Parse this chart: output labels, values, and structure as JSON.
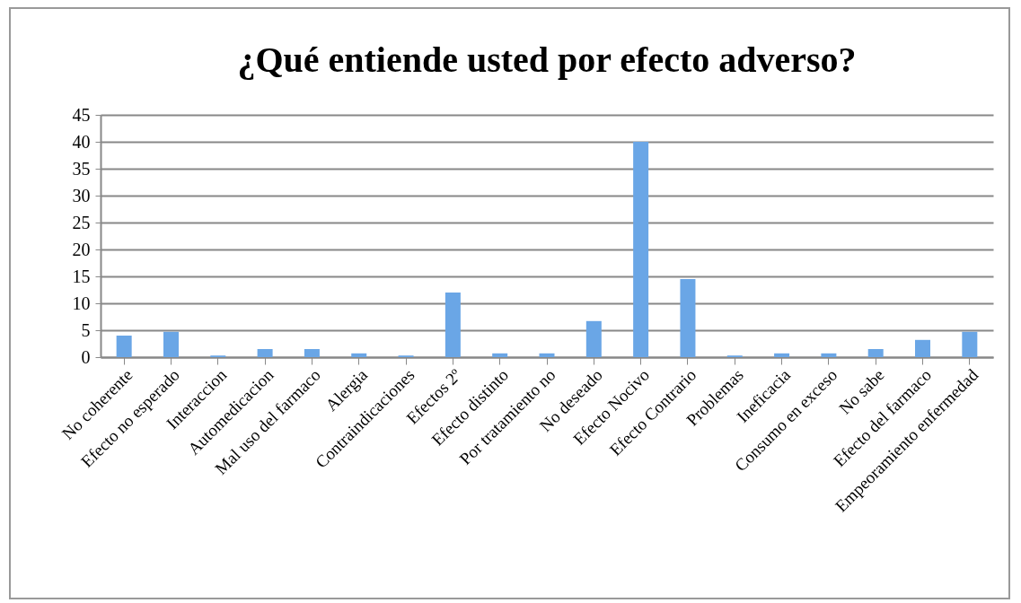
{
  "chart_data": {
    "type": "bar",
    "title": "¿Qué entiende usted por efecto adverso?",
    "categories": [
      "No coherente",
      "Efecto no esperado",
      "Interaccion",
      "Automedicacion",
      "Mal uso del farmaco",
      "Alergia",
      "Contraindicaciones",
      "Efectos 2º",
      "Efecto distinto",
      "Por tratamiento no",
      "No deseado",
      "Efecto Nocivo",
      "Efecto Contrario",
      "Problemas",
      "Ineficacia",
      "Consumo en exceso",
      "No sabe",
      "Efecto del farmaco",
      "Empeoramiento enfermedad"
    ],
    "values": [
      4,
      4.7,
      0.3,
      1.5,
      1.5,
      0.7,
      0.3,
      12,
      0.7,
      0.7,
      6.7,
      40,
      14.5,
      0.3,
      0.7,
      0.7,
      1.5,
      3.2,
      4.7
    ],
    "color": "#6aa6e6",
    "ylim": [
      0,
      45
    ],
    "yticks": [
      0,
      5,
      10,
      15,
      20,
      25,
      30,
      35,
      40,
      45
    ],
    "grid": "y"
  }
}
